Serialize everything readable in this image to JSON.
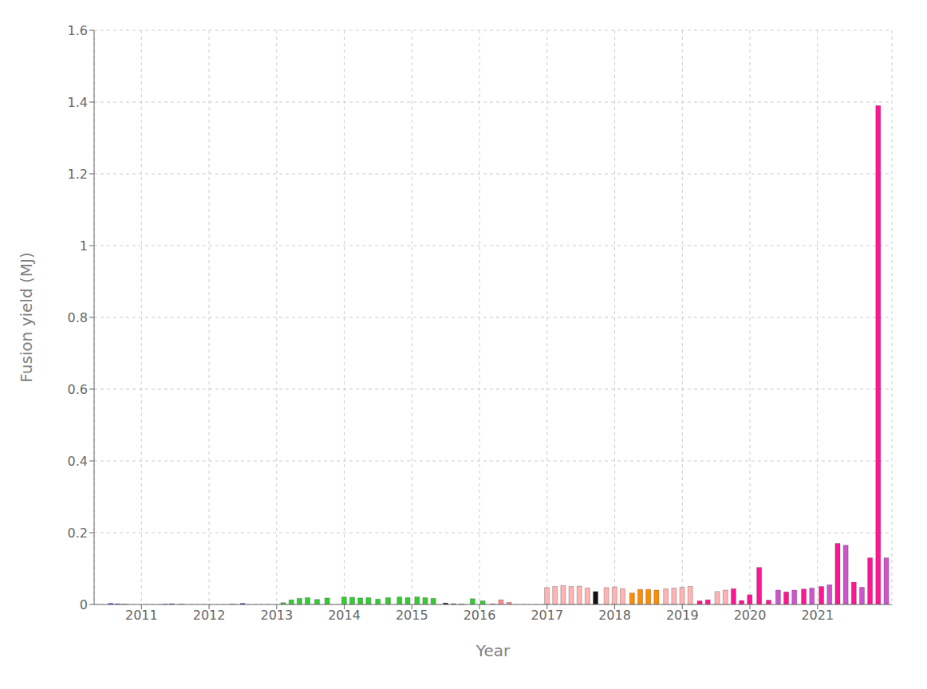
{
  "chart_data": {
    "type": "bar",
    "xlabel": "Year",
    "ylabel": "Fusion yield (MJ)",
    "xlim": [
      2010.3,
      2022.1
    ],
    "ylim": [
      0,
      1.6
    ],
    "xticks": [
      2011,
      2012,
      2013,
      2014,
      2015,
      2016,
      2017,
      2018,
      2019,
      2020,
      2021
    ],
    "yticks": [
      0,
      0.2,
      0.4,
      0.6,
      0.8,
      1.0,
      1.2,
      1.4,
      1.6
    ],
    "grid": true,
    "x": [
      2010.55,
      2010.65,
      2010.75,
      2011.35,
      2011.45,
      2011.6,
      2012.35,
      2012.5,
      2013.1,
      2013.22,
      2013.34,
      2013.46,
      2013.6,
      2013.75,
      2014.0,
      2014.12,
      2014.24,
      2014.36,
      2014.5,
      2014.65,
      2014.82,
      2014.94,
      2015.08,
      2015.2,
      2015.32,
      2015.5,
      2015.62,
      2015.74,
      2015.9,
      2016.05,
      2016.2,
      2016.32,
      2016.44,
      2017.0,
      2017.12,
      2017.24,
      2017.36,
      2017.48,
      2017.6,
      2017.72,
      2017.88,
      2018.0,
      2018.12,
      2018.26,
      2018.38,
      2018.5,
      2018.62,
      2018.76,
      2018.88,
      2019.0,
      2019.12,
      2019.26,
      2019.38,
      2019.52,
      2019.64,
      2019.76,
      2019.88,
      2020.0,
      2020.14,
      2020.28,
      2020.42,
      2020.54,
      2020.66,
      2020.8,
      2020.92,
      2021.06,
      2021.18,
      2021.3,
      2021.42,
      2021.54,
      2021.66,
      2021.78,
      2021.9,
      2022.02
    ],
    "values": [
      0.003,
      0.002,
      0.001,
      0.001,
      0.002,
      0.001,
      0.001,
      0.003,
      0.005,
      0.013,
      0.017,
      0.019,
      0.014,
      0.018,
      0.021,
      0.02,
      0.018,
      0.019,
      0.015,
      0.019,
      0.021,
      0.019,
      0.021,
      0.019,
      0.017,
      0.004,
      0.002,
      0.001,
      0.016,
      0.01,
      0.002,
      0.013,
      0.006,
      0.047,
      0.05,
      0.053,
      0.05,
      0.051,
      0.046,
      0.036,
      0.047,
      0.049,
      0.044,
      0.032,
      0.042,
      0.042,
      0.04,
      0.044,
      0.046,
      0.048,
      0.05,
      0.01,
      0.013,
      0.036,
      0.04,
      0.044,
      0.011,
      0.027,
      0.103,
      0.012,
      0.04,
      0.035,
      0.04,
      0.043,
      0.046,
      0.05,
      0.055,
      0.17,
      0.165,
      0.062,
      0.048,
      0.13,
      1.39,
      0.13
    ],
    "colors": [
      "#1a1aff",
      "#1a1aff",
      "#1a1aff",
      "#1a1aff",
      "#1a1aff",
      "#00bfff",
      "#1a1aff",
      "#1a1aff",
      "#33cc33",
      "#33cc33",
      "#33cc33",
      "#33cc33",
      "#33cc33",
      "#33cc33",
      "#33cc33",
      "#33cc33",
      "#33cc33",
      "#33cc33",
      "#33cc33",
      "#33cc33",
      "#33cc33",
      "#33cc33",
      "#33cc33",
      "#33cc33",
      "#33cc33",
      "#111111",
      "#111111",
      "#111111",
      "#33cc33",
      "#33cc33",
      "#ff8888",
      "#ff8888",
      "#ff8888",
      "#ffb3b3",
      "#ffb3b3",
      "#ffb3b3",
      "#ffb3b3",
      "#ffb3b3",
      "#ffb3b3",
      "#111111",
      "#ffb3b3",
      "#ffb3b3",
      "#ffb3b3",
      "#ff8c00",
      "#ff8c00",
      "#ff8c00",
      "#ff8c00",
      "#ffb3b3",
      "#ffb3b3",
      "#ffb3b3",
      "#ffb3b3",
      "#ff1493",
      "#ff1493",
      "#ffb3b3",
      "#ffb3b3",
      "#ff1493",
      "#ff1493",
      "#ff1493",
      "#ff1493",
      "#ff1493",
      "#cc55cc",
      "#ff1493",
      "#cc55cc",
      "#ff1493",
      "#cc55cc",
      "#ff1493",
      "#cc55cc",
      "#ff1493",
      "#cc55cc",
      "#ff1493",
      "#cc55cc",
      "#ff1493",
      "#ff1493",
      "#cc55cc"
    ]
  }
}
